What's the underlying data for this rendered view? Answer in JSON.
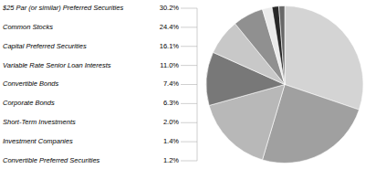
{
  "chart_data": {
    "type": "pie",
    "categories": [
      "$25 Par (or similar) Preferred Securities",
      "Common Stocks",
      "Capital Preferred Securities",
      "Variable Rate Senior Loan Interests",
      "Convertible Bonds",
      "Corporate Bonds",
      "Short-Term Investments",
      "Investment Companies",
      "Convertible Preferred Securities"
    ],
    "values": [
      30.2,
      24.4,
      16.1,
      11.0,
      7.4,
      6.3,
      2.0,
      1.4,
      1.2
    ],
    "value_labels": [
      "30.2%",
      "24.4%",
      "16.1%",
      "11.0%",
      "7.4%",
      "6.3%",
      "2.0%",
      "1.4%",
      "1.2%"
    ],
    "colors": [
      "#d4d4d4",
      "#a0a0a0",
      "#b8b8b8",
      "#787878",
      "#c8c8c8",
      "#909090",
      "#ebebeb",
      "#282828",
      "#686868"
    ],
    "data_labels": true
  }
}
